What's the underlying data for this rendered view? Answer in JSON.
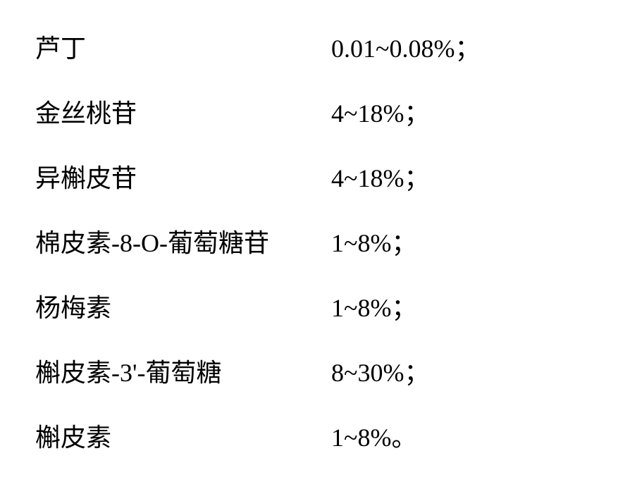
{
  "table": {
    "rows": [
      {
        "label": "芦丁",
        "value": "0.01~0.08%；"
      },
      {
        "label": "金丝桃苷",
        "value": "4~18%；"
      },
      {
        "label": "异槲皮苷",
        "value": "4~18%；"
      },
      {
        "label": "棉皮素-8-O-葡萄糖苷",
        "value": "1~8%；"
      },
      {
        "label": "杨梅素",
        "value": "1~8%；"
      },
      {
        "label": "槲皮素-3'-葡萄糖",
        "value": "8~30%；"
      },
      {
        "label": "槲皮素",
        "value": "1~8%。"
      }
    ],
    "styling": {
      "font_family": "SimSun",
      "font_size": 36,
      "text_color": "#000000",
      "background_color": "#ffffff",
      "row_spacing": 40,
      "label_width": 420
    }
  }
}
